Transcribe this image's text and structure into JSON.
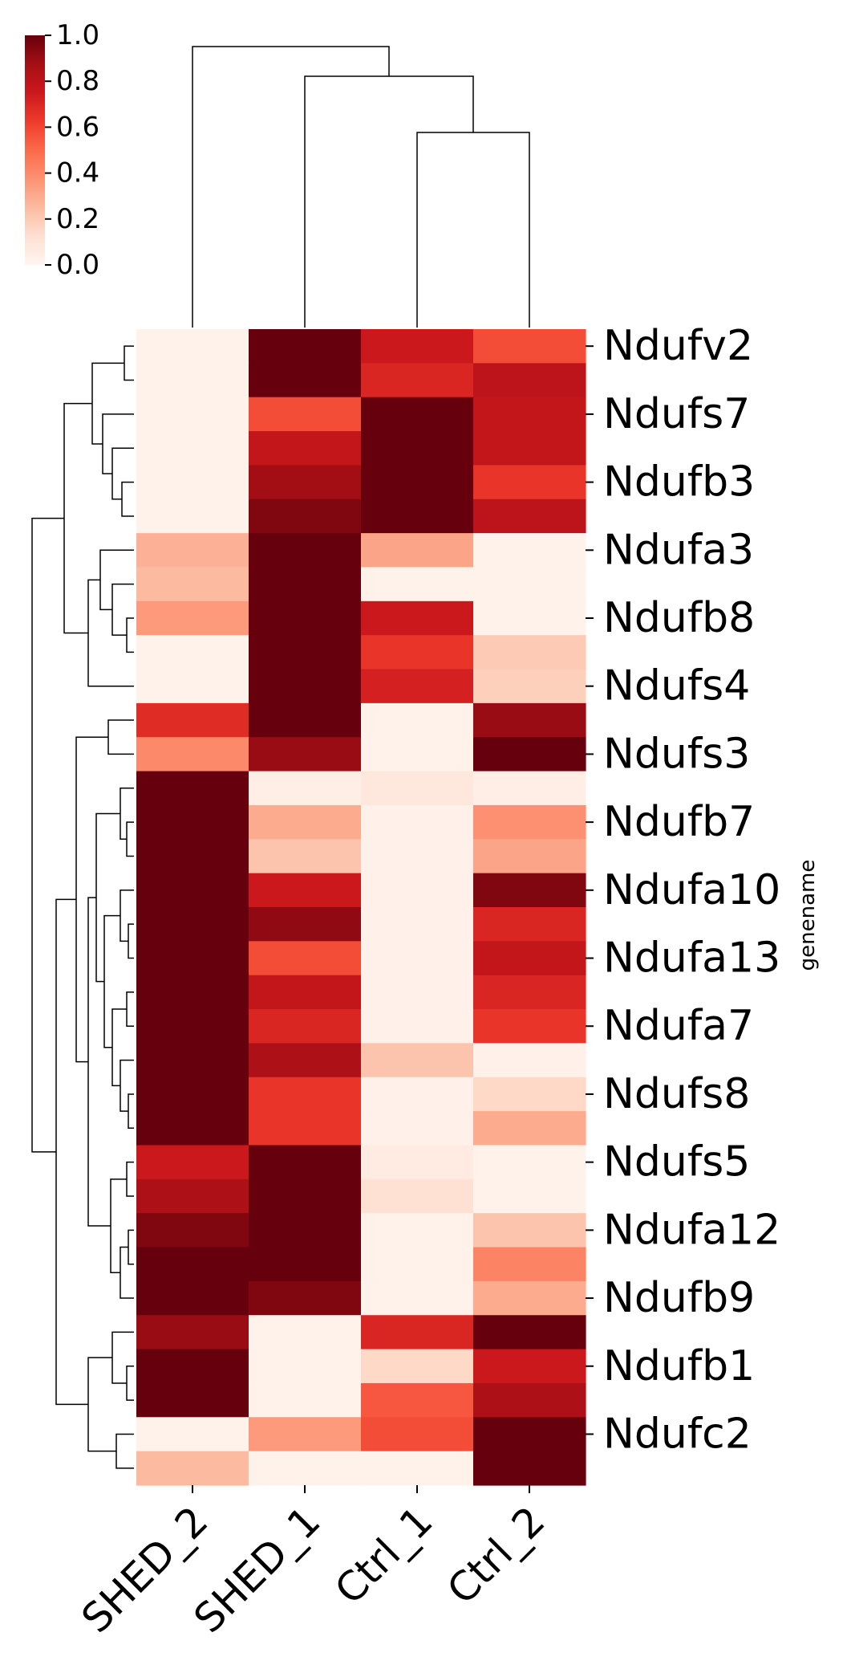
{
  "chart_data": {
    "type": "heatmap",
    "title": "",
    "xlabel": "",
    "ylabel": "genename",
    "colormap": "Reds",
    "colorbar": {
      "range": [
        0,
        1
      ],
      "ticks": [
        "0.0",
        "0.2",
        "0.4",
        "0.6",
        "0.8",
        "1.0"
      ],
      "placement": "top-left"
    },
    "columns": [
      "SHED_2",
      "SHED_1",
      "Ctrl_1",
      "Ctrl_2"
    ],
    "row_tick_labels": [
      "Ndufv2",
      "Ndufs7",
      "Ndufb3",
      "Ndufa3",
      "Ndufb8",
      "Ndufs4",
      "Ndufs3",
      "Ndufb7",
      "Ndufa10",
      "Ndufa13",
      "Ndufa7",
      "Ndufs8",
      "Ndufs5",
      "Ndufa12",
      "Ndufb9",
      "Ndufb1",
      "Ndufc2"
    ],
    "values": [
      [
        0.02,
        1.0,
        0.75,
        0.58
      ],
      [
        0.02,
        1.0,
        0.7,
        0.8
      ],
      [
        0.02,
        0.58,
        1.0,
        0.78
      ],
      [
        0.02,
        0.78,
        1.0,
        0.78
      ],
      [
        0.02,
        0.88,
        1.0,
        0.65
      ],
      [
        0.02,
        0.95,
        1.0,
        0.8
      ],
      [
        0.28,
        1.0,
        0.32,
        0.02
      ],
      [
        0.25,
        1.0,
        0.02,
        0.02
      ],
      [
        0.35,
        1.0,
        0.75,
        0.02
      ],
      [
        0.02,
        1.0,
        0.65,
        0.2
      ],
      [
        0.02,
        1.0,
        0.72,
        0.18
      ],
      [
        0.68,
        1.0,
        0.02,
        0.9
      ],
      [
        0.4,
        0.9,
        0.02,
        1.0
      ],
      [
        1.0,
        0.04,
        0.08,
        0.04
      ],
      [
        1.0,
        0.3,
        0.03,
        0.38
      ],
      [
        1.0,
        0.22,
        0.03,
        0.32
      ],
      [
        1.0,
        0.75,
        0.03,
        0.95
      ],
      [
        1.0,
        0.92,
        0.03,
        0.7
      ],
      [
        1.0,
        0.58,
        0.03,
        0.78
      ],
      [
        1.0,
        0.78,
        0.03,
        0.7
      ],
      [
        1.0,
        0.7,
        0.03,
        0.65
      ],
      [
        1.0,
        0.85,
        0.22,
        0.03
      ],
      [
        1.0,
        0.65,
        0.03,
        0.15
      ],
      [
        1.0,
        0.65,
        0.03,
        0.3
      ],
      [
        0.75,
        1.0,
        0.06,
        0.02
      ],
      [
        0.85,
        1.0,
        0.12,
        0.02
      ],
      [
        0.95,
        1.0,
        0.02,
        0.22
      ],
      [
        1.0,
        1.0,
        0.02,
        0.42
      ],
      [
        1.0,
        0.95,
        0.02,
        0.3
      ],
      [
        0.9,
        0.02,
        0.7,
        1.0
      ],
      [
        1.0,
        0.02,
        0.15,
        0.75
      ],
      [
        1.0,
        0.02,
        0.55,
        0.85
      ],
      [
        0.02,
        0.35,
        0.58,
        1.0
      ],
      [
        0.25,
        0.02,
        0.02,
        1.0
      ]
    ]
  }
}
